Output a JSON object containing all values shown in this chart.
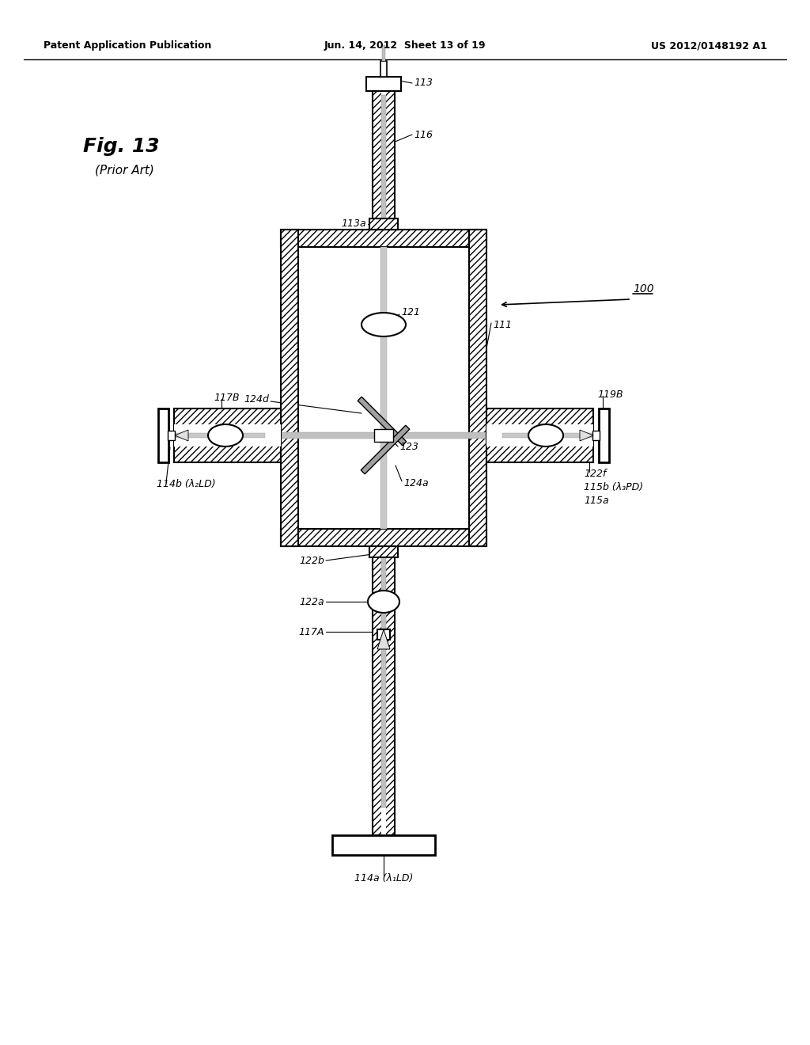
{
  "bg_color": "#ffffff",
  "header_left": "Patent Application Publication",
  "header_mid": "Jun. 14, 2012  Sheet 13 of 19",
  "header_right": "US 2012/0148192 A1",
  "fig_label": "Fig. 13",
  "fig_sublabel": "(Prior Art)",
  "lc": "#000000",
  "hatch_fc": "#e8e8e8",
  "gray": "#aaaaaa",
  "light_gray": "#cccccc",
  "label_100": "100",
  "label_111": "111",
  "label_113": "113",
  "label_113a": "113a",
  "label_116": "116",
  "label_119B": "119B",
  "label_121": "121",
  "label_122a": "122a",
  "label_122b": "122b",
  "label_122f": "122f",
  "label_123": "123",
  "label_124a": "124a",
  "label_124d": "124d",
  "label_114a": "114a (λ₁LD)",
  "label_114b": "114b (λ₂LD)",
  "label_115a": "115a",
  "label_115b": "115b (λ₃PD)",
  "label_117A": "117A",
  "label_117B": "117B"
}
